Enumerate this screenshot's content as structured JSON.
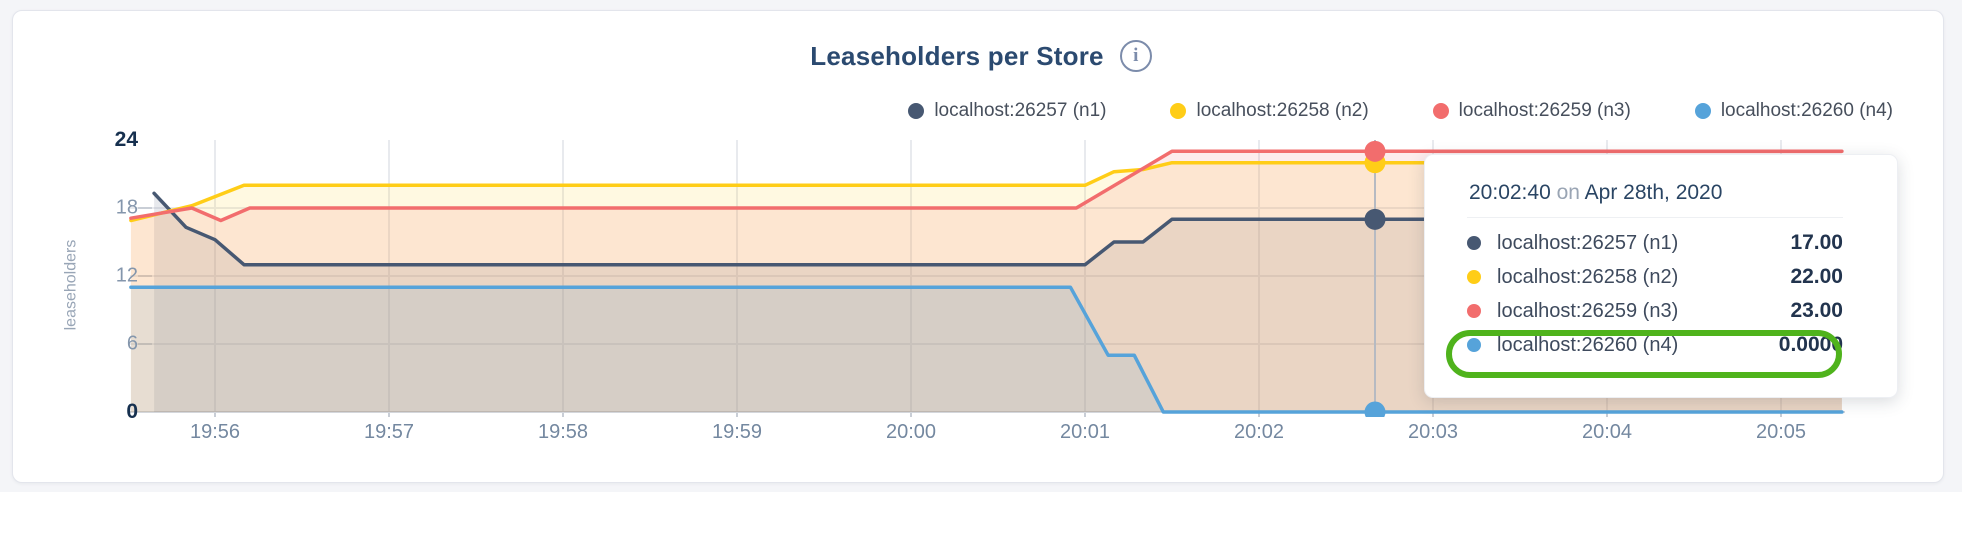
{
  "header": {
    "title": "Leaseholders per Store",
    "info_icon": "i"
  },
  "legend": {
    "items": [
      {
        "label": "localhost:26257 (n1)",
        "color": "#475872"
      },
      {
        "label": "localhost:26258 (n2)",
        "color": "#ffcd17"
      },
      {
        "label": "localhost:26259 (n3)",
        "color": "#f26d6d"
      },
      {
        "label": "localhost:26260 (n4)",
        "color": "#56a3da"
      }
    ]
  },
  "chart_data": {
    "type": "area",
    "title": "Leaseholders per Store",
    "ylabel": "leaseholders",
    "ylim": [
      0,
      24
    ],
    "y_ticks": [
      0,
      6,
      12,
      18,
      24
    ],
    "y_major_ticks": [
      0,
      24
    ],
    "x_ticks": [
      "19:56",
      "19:57",
      "19:58",
      "19:59",
      "20:00",
      "20:01",
      "20:02",
      "20:03",
      "20:04",
      "20:05"
    ],
    "x_range": [
      "19:55:31",
      "20:05:21"
    ],
    "grid": true,
    "legend_position": "top-right",
    "series": [
      {
        "name": "localhost:26257 (n1)",
        "color": "#475872",
        "points": [
          [
            "19:55:39",
            19.3
          ],
          [
            "19:55:50",
            16.3
          ],
          [
            "19:56:00",
            15.2
          ],
          [
            "19:56:10",
            13
          ],
          [
            "20:01:00",
            13
          ],
          [
            "20:01:10",
            15
          ],
          [
            "20:01:20",
            15
          ],
          [
            "20:01:30",
            17
          ],
          [
            "20:05:21",
            17
          ]
        ]
      },
      {
        "name": "localhost:26258 (n2)",
        "color": "#ffcd17",
        "points": [
          [
            "19:55:31",
            16.9
          ],
          [
            "19:55:52",
            18.2
          ],
          [
            "19:56:10",
            20
          ],
          [
            "20:01:00",
            20
          ],
          [
            "20:01:10",
            21.2
          ],
          [
            "20:01:20",
            21.4
          ],
          [
            "20:01:30",
            22
          ],
          [
            "20:05:21",
            22
          ]
        ]
      },
      {
        "name": "localhost:26259 (n3)",
        "color": "#f26d6d",
        "points": [
          [
            "19:55:31",
            17.1
          ],
          [
            "19:55:52",
            18
          ],
          [
            "19:56:02",
            16.9
          ],
          [
            "19:56:12",
            18
          ],
          [
            "20:00:57",
            18
          ],
          [
            "20:01:30",
            23
          ],
          [
            "20:05:21",
            23
          ]
        ]
      },
      {
        "name": "localhost:26260 (n4)",
        "color": "#56a3da",
        "points": [
          [
            "19:55:31",
            11
          ],
          [
            "20:00:55",
            11
          ],
          [
            "20:01:08",
            5
          ],
          [
            "20:01:17",
            5
          ],
          [
            "20:01:27",
            0
          ],
          [
            "20:05:21",
            0
          ]
        ]
      }
    ],
    "hover": {
      "time": "20:02:40",
      "values": [
        17,
        22,
        23,
        0
      ]
    }
  },
  "tooltip": {
    "time": "20:02:40",
    "on_word": "on",
    "date": "Apr 28th, 2020",
    "rows": [
      {
        "label": "localhost:26257 (n1)",
        "value": "17.00",
        "color": "#475872"
      },
      {
        "label": "localhost:26258 (n2)",
        "value": "22.00",
        "color": "#ffcd17"
      },
      {
        "label": "localhost:26259 (n3)",
        "value": "23.00",
        "color": "#f26d6d"
      },
      {
        "label": "localhost:26260 (n4)",
        "value": "0.0000",
        "color": "#56a3da"
      }
    ],
    "highlighted_row": 3
  },
  "colors": {
    "band_background": "#f4f5f8",
    "card_background": "#ffffff",
    "grid": "#e8eaee",
    "axis_baseline": "#d4d7dc",
    "tick": "#c9ced6",
    "hover_line": "#b6bac2",
    "title": "#2b4a70",
    "annotation_green": "#4fb31c"
  }
}
